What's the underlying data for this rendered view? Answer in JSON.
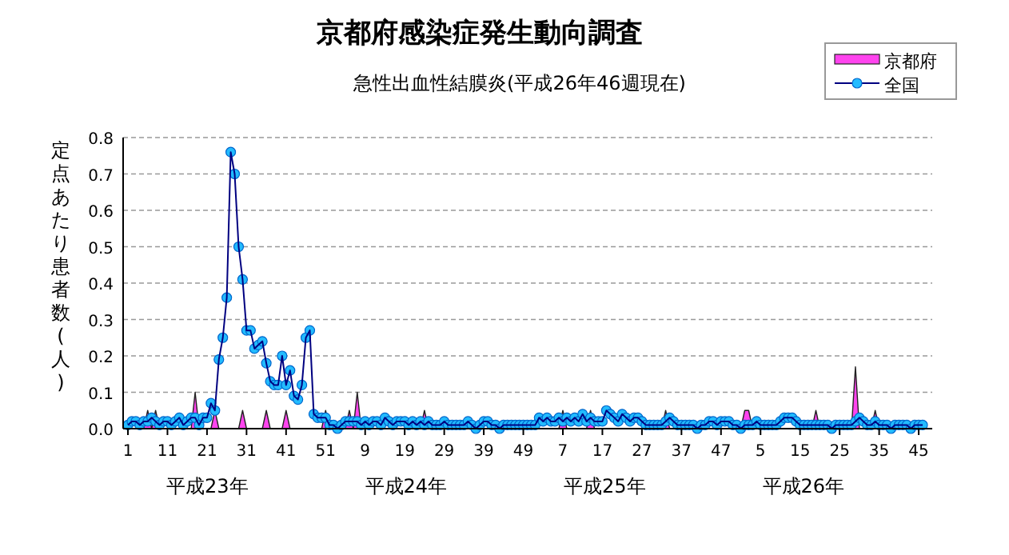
{
  "chart_data": {
    "type": "line",
    "title": "京都府感染症発生動向調査",
    "subtitle": "急性出血性結膜炎(平成26年46週現在)",
    "ylabel": "定点あたり患者数(人)",
    "annotations": [
      "平成23年",
      "平成24年",
      "平成25年",
      "平成26年"
    ],
    "categories": [
      "1",
      null,
      null,
      null,
      null,
      null,
      null,
      null,
      null,
      null,
      "11",
      null,
      null,
      null,
      null,
      null,
      null,
      null,
      null,
      null,
      "21",
      null,
      null,
      null,
      null,
      null,
      null,
      null,
      null,
      null,
      "31",
      null,
      null,
      null,
      null,
      null,
      null,
      null,
      null,
      null,
      "41",
      null,
      null,
      null,
      null,
      null,
      null,
      null,
      null,
      null,
      "51",
      null,
      null,
      null,
      null,
      null,
      null,
      null,
      null,
      null,
      "9",
      null,
      null,
      null,
      null,
      null,
      null,
      null,
      null,
      null,
      "19",
      null,
      null,
      null,
      null,
      null,
      null,
      null,
      null,
      null,
      "29",
      null,
      null,
      null,
      null,
      null,
      null,
      null,
      null,
      null,
      "39",
      null,
      null,
      null,
      null,
      null,
      null,
      null,
      null,
      null,
      "49",
      null,
      null,
      null,
      null,
      null,
      null,
      null,
      null,
      null,
      "7",
      null,
      null,
      null,
      null,
      null,
      null,
      null,
      null,
      null,
      "17",
      null,
      null,
      null,
      null,
      null,
      null,
      null,
      null,
      null,
      "27",
      null,
      null,
      null,
      null,
      null,
      null,
      null,
      null,
      null,
      "37",
      null,
      null,
      null,
      null,
      null,
      null,
      null,
      null,
      null,
      "47",
      null,
      null,
      null,
      null,
      null,
      null,
      null,
      null,
      null,
      "5",
      null,
      null,
      null,
      null,
      null,
      null,
      null,
      null,
      null,
      "15",
      null,
      null,
      null,
      null,
      null,
      null,
      null,
      null,
      null,
      "25",
      null,
      null,
      null,
      null,
      null,
      null,
      null,
      null,
      null,
      "35",
      null,
      null,
      null,
      null,
      null,
      null,
      null,
      null,
      null,
      "45",
      null
    ],
    "series": [
      {
        "name": "京都府",
        "type": "area",
        "color": "#ff44ee",
        "values": [
          0,
          0,
          0,
          0,
          0,
          0.05,
          0,
          0.05,
          0,
          0,
          0,
          0,
          0,
          0,
          0,
          0,
          0,
          0.1,
          0,
          0,
          0,
          0,
          0.05,
          0,
          0,
          0,
          0,
          0,
          0,
          0.05,
          0,
          0,
          0,
          0,
          0,
          0.05,
          0,
          0,
          0,
          0,
          0.05,
          0,
          0,
          0,
          0,
          0,
          0,
          0,
          0,
          0,
          0.05,
          0,
          0,
          0,
          0,
          0,
          0.05,
          0,
          0.1,
          0,
          0,
          0,
          0,
          0,
          0,
          0,
          0,
          0,
          0,
          0,
          0,
          0,
          0,
          0,
          0,
          0.05,
          0,
          0,
          0,
          0,
          0,
          0,
          0,
          0,
          0,
          0,
          0,
          0,
          0,
          0,
          0,
          0,
          0,
          0,
          0,
          0,
          0,
          0,
          0,
          0,
          0,
          0,
          0,
          0,
          0,
          0,
          0,
          0,
          0,
          0,
          0.05,
          0,
          0,
          0,
          0,
          0,
          0,
          0.05,
          0,
          0,
          0,
          0,
          0,
          0,
          0,
          0,
          0,
          0,
          0,
          0,
          0,
          0,
          0,
          0,
          0,
          0,
          0.05,
          0,
          0,
          0,
          0,
          0,
          0,
          0,
          0,
          0,
          0,
          0,
          0,
          0,
          0,
          0,
          0,
          0,
          0,
          0,
          0.05,
          0.05,
          0,
          0,
          0,
          0,
          0,
          0,
          0,
          0,
          0,
          0,
          0,
          0,
          0,
          0,
          0,
          0,
          0.05,
          0,
          0,
          0,
          0,
          0,
          0,
          0,
          0,
          0,
          0.17,
          0,
          0,
          0,
          0,
          0.05,
          0,
          0,
          0,
          0,
          0,
          0,
          0,
          0,
          0,
          0,
          0,
          0
        ]
      },
      {
        "name": "全国",
        "marker": "circle",
        "color": "#22bbff",
        "values": [
          0.01,
          0.02,
          0.02,
          0.01,
          0.02,
          0.02,
          0.03,
          0.02,
          0.01,
          0.02,
          0.02,
          0.01,
          0.02,
          0.03,
          0.01,
          0.02,
          0.03,
          0.03,
          0.01,
          0.03,
          0.03,
          0.07,
          0.05,
          0.19,
          0.25,
          0.36,
          0.76,
          0.7,
          0.5,
          0.41,
          0.27,
          0.27,
          0.22,
          0.23,
          0.24,
          0.18,
          0.13,
          0.12,
          0.12,
          0.2,
          0.12,
          0.16,
          0.09,
          0.08,
          0.12,
          0.25,
          0.27,
          0.04,
          0.03,
          0.03,
          0.03,
          0.01,
          0.01,
          0.0,
          0.01,
          0.02,
          0.02,
          0.02,
          0.02,
          0.01,
          0.02,
          0.01,
          0.02,
          0.02,
          0.01,
          0.03,
          0.02,
          0.01,
          0.02,
          0.02,
          0.02,
          0.01,
          0.02,
          0.01,
          0.02,
          0.01,
          0.02,
          0.01,
          0.01,
          0.01,
          0.02,
          0.01,
          0.01,
          0.01,
          0.01,
          0.01,
          0.02,
          0.01,
          0.0,
          0.01,
          0.02,
          0.02,
          0.01,
          0.01,
          0.0,
          0.01,
          0.01,
          0.01,
          0.01,
          0.01,
          0.01,
          0.01,
          0.01,
          0.01,
          0.03,
          0.02,
          0.03,
          0.02,
          0.02,
          0.03,
          0.02,
          0.03,
          0.02,
          0.03,
          0.02,
          0.04,
          0.02,
          0.03,
          0.02,
          0.02,
          0.02,
          0.05,
          0.04,
          0.03,
          0.02,
          0.04,
          0.03,
          0.02,
          0.03,
          0.03,
          0.02,
          0.01,
          0.01,
          0.01,
          0.01,
          0.01,
          0.02,
          0.03,
          0.02,
          0.01,
          0.01,
          0.01,
          0.01,
          0.01,
          0.0,
          0.01,
          0.01,
          0.02,
          0.02,
          0.01,
          0.02,
          0.02,
          0.02,
          0.01,
          0.01,
          0.0,
          0.01,
          0.01,
          0.01,
          0.02,
          0.01,
          0.01,
          0.01,
          0.01,
          0.01,
          0.02,
          0.03,
          0.03,
          0.03,
          0.02,
          0.01,
          0.01,
          0.01,
          0.01,
          0.01,
          0.01,
          0.01,
          0.01,
          0.0,
          0.01,
          0.01,
          0.01,
          0.01,
          0.01,
          0.02,
          0.03,
          0.02,
          0.01,
          0.01,
          0.02,
          0.01,
          0.01,
          0.01,
          0.0,
          0.01,
          0.01,
          0.01,
          0.01,
          0.0,
          0.01,
          0.01,
          0.01
        ]
      }
    ],
    "ylim": [
      0,
      0.8
    ],
    "yticks": [
      {
        "value": 0,
        "label": "0.0"
      },
      0.1,
      0.2,
      0.3,
      0.4,
      0.5,
      0.6,
      0.7,
      0.8
    ],
    "grid": "y",
    "legend": "top right"
  }
}
